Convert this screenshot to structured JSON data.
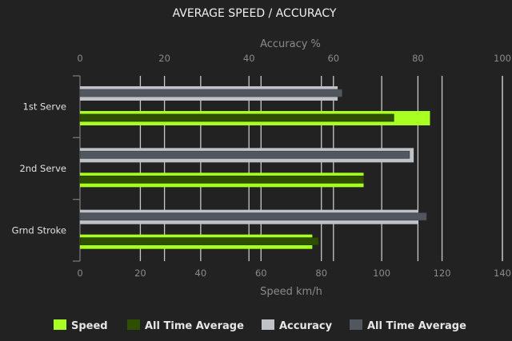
{
  "chart_data": {
    "type": "bar",
    "orientation": "horizontal",
    "title": "AVERAGE SPEED / ACCURACY",
    "categories": [
      "1st Serve",
      "2nd Serve",
      "Grnd Stroke"
    ],
    "x_bottom": {
      "label": "Speed km/h",
      "range": [
        0,
        140
      ],
      "ticks": [
        0,
        20,
        40,
        60,
        80,
        100,
        120,
        140
      ]
    },
    "x_top": {
      "label": "Accuracy %",
      "range": [
        0,
        100
      ],
      "ticks": [
        0,
        20,
        40,
        60,
        80,
        100
      ]
    },
    "grid": true,
    "legend_position": "bottom",
    "series": [
      {
        "name": "Speed",
        "axis": "bottom",
        "color": "#aaff22",
        "values": [
          116,
          94,
          77
        ]
      },
      {
        "name": "All Time Average",
        "axis": "bottom",
        "color": "#2f4f00",
        "values": [
          104,
          94,
          79
        ]
      },
      {
        "name": "Accuracy",
        "axis": "top",
        "color": "#bfc3c7",
        "values": [
          61,
          79,
          80
        ]
      },
      {
        "name": "All Time Average",
        "axis": "top",
        "color": "#52565e",
        "values": [
          62,
          78,
          82
        ]
      }
    ]
  }
}
